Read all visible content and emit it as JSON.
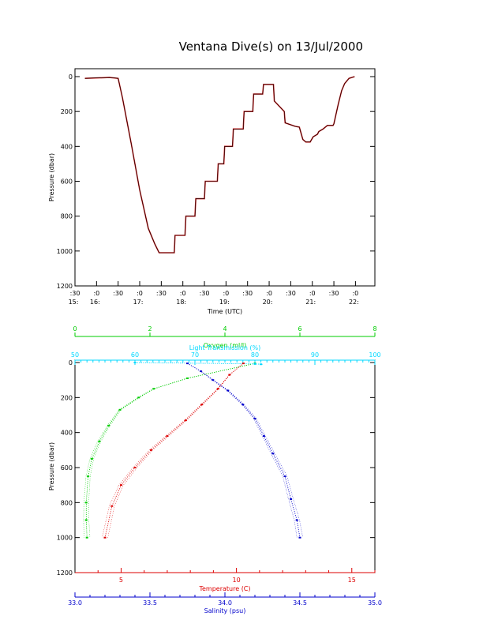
{
  "title": "Ventana Dive(s) on 13/Jul/2000",
  "colors": {
    "black": "#000000",
    "trace": "#cc2222",
    "oxygen": "#00cc00",
    "light": "#00d8ff",
    "temperature": "#dd0000",
    "salinity": "#0000cc"
  },
  "chart_data": [
    {
      "type": "line",
      "title": "Ventana Dive(s) on 13/Jul/2000",
      "xlabel": "Time (UTC)",
      "ylabel": "Pressure (dbar)",
      "xlim": [
        15.5,
        22.45
      ],
      "ylim": [
        1200,
        0
      ],
      "y_ticks": [
        "0",
        "200",
        "400",
        "600",
        "800",
        "1000",
        "1200"
      ],
      "x_ticks": [
        {
          "t": 15.5,
          "top": ":30",
          "bottom": "15:"
        },
        {
          "t": 16.0,
          "top": ":0",
          "bottom": "16:"
        },
        {
          "t": 16.5,
          "top": ":30",
          "bottom": ""
        },
        {
          "t": 17.0,
          "top": ":0",
          "bottom": "17:"
        },
        {
          "t": 17.5,
          "top": ":30",
          "bottom": ""
        },
        {
          "t": 18.0,
          "top": ":0",
          "bottom": "18:"
        },
        {
          "t": 18.5,
          "top": ":30",
          "bottom": ""
        },
        {
          "t": 19.0,
          "top": ":0",
          "bottom": "19:"
        },
        {
          "t": 19.5,
          "top": ":30",
          "bottom": ""
        },
        {
          "t": 20.0,
          "top": ":0",
          "bottom": "20:"
        },
        {
          "t": 20.5,
          "top": ":30",
          "bottom": ""
        },
        {
          "t": 21.0,
          "top": ":0",
          "bottom": "21:"
        },
        {
          "t": 21.5,
          "top": ":30",
          "bottom": ""
        },
        {
          "t": 22.0,
          "top": ":0",
          "bottom": "22:"
        }
      ],
      "series": [
        {
          "x": [
            15.73,
            16.3,
            16.5,
            16.6,
            16.8,
            17.0,
            17.2,
            17.35,
            17.45,
            17.5,
            17.8,
            17.82,
            17.95,
            18.05,
            18.07,
            18.28,
            18.3,
            18.5,
            18.52,
            18.8,
            18.82,
            18.95,
            18.97,
            19.15,
            19.17,
            19.4,
            19.42,
            19.62,
            19.64,
            19.85,
            19.87,
            20.1,
            20.12,
            20.35,
            20.37,
            20.6,
            20.7,
            20.78,
            20.85,
            20.95,
            21.02,
            21.12,
            21.15,
            21.25,
            21.35,
            21.48,
            21.5,
            21.6,
            21.68,
            21.75,
            21.85,
            21.98
          ],
          "y": [
            10,
            5,
            10,
            120,
            380,
            650,
            870,
            960,
            1010,
            1010,
            1010,
            910,
            910,
            910,
            800,
            800,
            700,
            700,
            600,
            600,
            500,
            500,
            400,
            400,
            300,
            300,
            200,
            200,
            100,
            100,
            45,
            45,
            140,
            200,
            265,
            285,
            290,
            360,
            375,
            375,
            345,
            330,
            315,
            300,
            280,
            280,
            270,
            160,
            80,
            40,
            10,
            0
          ]
        }
      ]
    },
    {
      "type": "line",
      "ylabel": "Pressure (dbar)",
      "ylim": [
        1200,
        0
      ],
      "y_ticks": [
        "0",
        "200",
        "400",
        "600",
        "800",
        "1000",
        "1200"
      ],
      "axes": [
        {
          "label": "Oxygen (ml/l)",
          "range": [
            0,
            8
          ],
          "ticks": [
            "0",
            "2",
            "4",
            "6",
            "8"
          ],
          "position": "top"
        },
        {
          "label": "Light Transmission (%)",
          "range": [
            50,
            100
          ],
          "ticks": [
            "50",
            "60",
            "70",
            "80",
            "90",
            "100"
          ],
          "position": "top"
        },
        {
          "label": "Temperature (C)",
          "range": [
            3.0,
            16.0
          ],
          "ticks": [
            "5",
            "10",
            "15"
          ],
          "position": "bottom"
        },
        {
          "label": "Salinity (psu)",
          "range": [
            33.0,
            35.0
          ],
          "ticks": [
            "33.0",
            "33.5",
            "34.0",
            "34.5",
            "35.0"
          ],
          "position": "bottom"
        }
      ],
      "series": [
        {
          "axis": "Oxygen (ml/l)",
          "x": [
            4.8,
            3.0,
            2.1,
            1.7,
            1.2,
            0.9,
            0.65,
            0.45,
            0.35,
            0.3,
            0.3,
            0.32
          ],
          "y": [
            5,
            90,
            150,
            200,
            270,
            360,
            450,
            550,
            650,
            800,
            900,
            1000
          ]
        },
        {
          "axis": "Light Transmission (%)",
          "x": [
            60,
            80,
            81
          ],
          "y": [
            0,
            8,
            10
          ]
        },
        {
          "axis": "Temperature (C)",
          "x": [
            10.3,
            9.7,
            9.2,
            8.5,
            7.8,
            7.0,
            6.3,
            5.6,
            5.0,
            4.6,
            4.3
          ],
          "y": [
            5,
            70,
            150,
            240,
            330,
            420,
            500,
            600,
            700,
            820,
            1000
          ]
        },
        {
          "axis": "Salinity (psu)",
          "x": [
            33.75,
            33.84,
            33.92,
            34.02,
            34.12,
            34.2,
            34.26,
            34.32,
            34.4,
            34.44,
            34.48,
            34.5
          ],
          "y": [
            5,
            50,
            100,
            160,
            240,
            320,
            420,
            520,
            650,
            780,
            900,
            1000
          ]
        }
      ]
    }
  ]
}
